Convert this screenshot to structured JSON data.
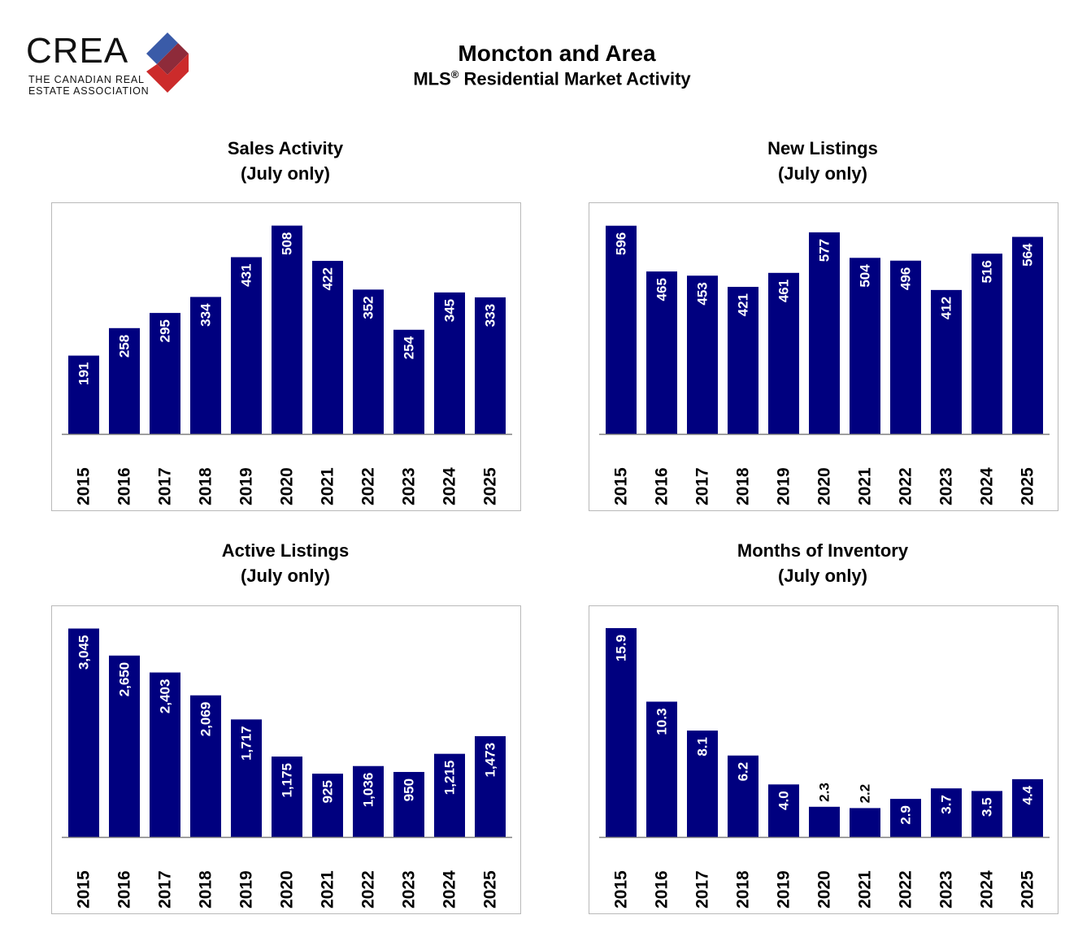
{
  "header": {
    "logo_word": "CREA",
    "logo_tagline_1": "THE CANADIAN REAL",
    "logo_tagline_2": "ESTATE ASSOCIATION",
    "title": "Moncton and Area",
    "subtitle_prefix": "MLS",
    "subtitle_mark": "®",
    "subtitle_suffix": " Residential Market Activity"
  },
  "colors": {
    "bar": "#00007f",
    "axis": "#7f7f7f",
    "frame": "#b9b9b9",
    "logo_blue": "#3a5ba8",
    "logo_red": "#cc2b2b",
    "logo_dark": "#8e2b3a"
  },
  "chart_data": [
    {
      "type": "bar",
      "title": "Sales Activity",
      "subtitle": "(July only)",
      "categories": [
        "2015",
        "2016",
        "2017",
        "2018",
        "2019",
        "2020",
        "2021",
        "2022",
        "2023",
        "2024",
        "2025"
      ],
      "values": [
        191,
        258,
        295,
        334,
        431,
        508,
        422,
        352,
        254,
        345,
        333
      ],
      "labels": [
        "191",
        "258",
        "295",
        "334",
        "431",
        "508",
        "422",
        "352",
        "254",
        "345",
        "333"
      ],
      "ylim": [
        0,
        535
      ]
    },
    {
      "type": "bar",
      "title": "New Listings",
      "subtitle": "(July only)",
      "categories": [
        "2015",
        "2016",
        "2017",
        "2018",
        "2019",
        "2020",
        "2021",
        "2022",
        "2023",
        "2024",
        "2025"
      ],
      "values": [
        596,
        465,
        453,
        421,
        461,
        577,
        504,
        496,
        412,
        516,
        564
      ],
      "labels": [
        "596",
        "465",
        "453",
        "421",
        "461",
        "577",
        "504",
        "496",
        "412",
        "516",
        "564"
      ],
      "ylim": [
        0,
        628
      ]
    },
    {
      "type": "bar",
      "title": "Active Listings",
      "subtitle": "(July only)",
      "categories": [
        "2015",
        "2016",
        "2017",
        "2018",
        "2019",
        "2020",
        "2021",
        "2022",
        "2023",
        "2024",
        "2025"
      ],
      "values": [
        3045,
        2650,
        2403,
        2069,
        1717,
        1175,
        925,
        1036,
        950,
        1215,
        1473
      ],
      "labels": [
        "3,045",
        "2,650",
        "2,403",
        "2,069",
        "1,717",
        "1,175",
        "925",
        "1,036",
        "950",
        "1,215",
        "1,473"
      ],
      "ylim": [
        0,
        3205
      ]
    },
    {
      "type": "bar",
      "title": "Months of Inventory",
      "subtitle": "(July only)",
      "categories": [
        "2015",
        "2016",
        "2017",
        "2018",
        "2019",
        "2020",
        "2021",
        "2022",
        "2023",
        "2024",
        "2025"
      ],
      "values": [
        15.9,
        10.3,
        8.1,
        6.2,
        4.0,
        2.3,
        2.2,
        2.9,
        3.7,
        3.5,
        4.4
      ],
      "labels": [
        "15.9",
        "10.3",
        "8.1",
        "6.2",
        "4.0",
        "2.3",
        "2.2",
        "2.9",
        "3.7",
        "3.5",
        "4.4"
      ],
      "ylim": [
        0,
        16.7
      ]
    }
  ]
}
